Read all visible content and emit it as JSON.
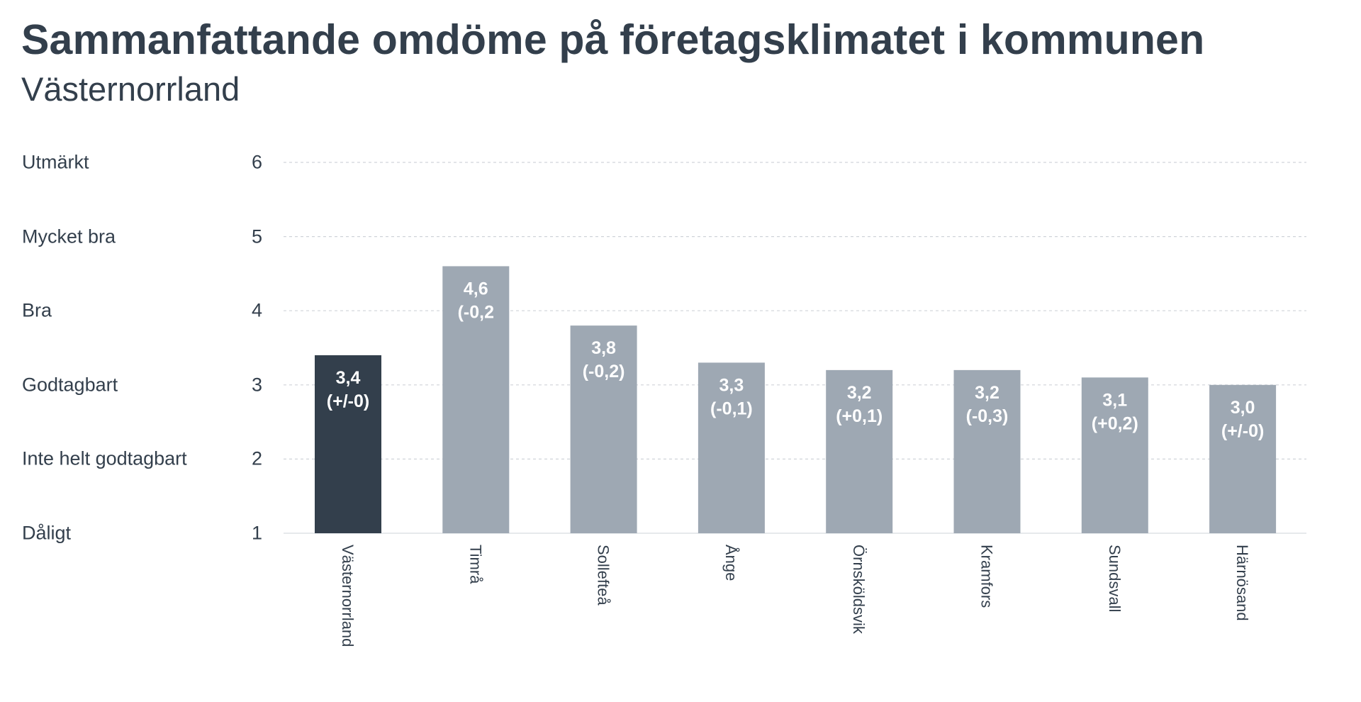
{
  "chart_data": {
    "type": "bar",
    "title": "Sammanfattande omdöme på företagsklimatet i kommunen",
    "subtitle": "Västernorrland",
    "ylim": [
      1,
      6
    ],
    "yticks": [
      "1",
      "2",
      "3",
      "4",
      "5",
      "6"
    ],
    "ycategory_labels": [
      "Dåligt",
      "Inte helt godtagbart",
      "Godtagbart",
      "Bra",
      "Mycket bra",
      "Utmärkt"
    ],
    "grid": true,
    "categories": [
      "Västernorrland",
      "Timrå",
      "Sollefteå",
      "Ånge",
      "Örnsköldsvik",
      "Kramfors",
      "Sundsvall",
      "Härnösand"
    ],
    "values": [
      3.4,
      4.6,
      3.8,
      3.3,
      3.2,
      3.2,
      3.1,
      3.0
    ],
    "value_labels": [
      "3,4",
      "4,6",
      "3,8",
      "3,3",
      "3,2",
      "3,2",
      "3,1",
      "3,0"
    ],
    "change_labels": [
      "(+/-0)",
      "(-0,2",
      "(-0,2)",
      "(-0,1)",
      "(+0,1)",
      "(-0,3)",
      "(+0,2)",
      "(+/-0)"
    ],
    "colors": {
      "highlight": "#333f4c",
      "default": "#9ea8b3",
      "grid": "#d0d4d9",
      "text": "#333f4c"
    }
  }
}
